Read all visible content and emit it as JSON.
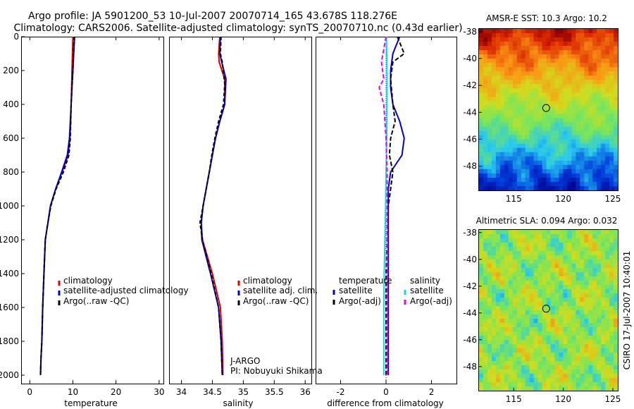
{
  "figure": {
    "title_line1": "Argo profile: JA 5901200_53 10-Jul-2007 20070714_165 43.678S 118.276E",
    "title_line2": "Climatology: CARS2006. Satellite-adjusted climatology: synTS_20070710.nc (0.43d earlier)",
    "side_stamp": "CSIRO 17-Jul-2007 10:40:01",
    "pi_line1": "J-ARGO",
    "pi_line2": "PI: Nobuyuki Shikama"
  },
  "colors": {
    "climatology": "#dd0000",
    "satellite": "#0000cc",
    "argo": "#000000",
    "sat_salinity": "#00e0e0",
    "argo_salinity_diff": "#ee00ee",
    "zero_line": "#0000ff"
  },
  "chart_data": [
    {
      "id": "temperature",
      "type": "line",
      "xlabel": "temperature",
      "ylabel": "",
      "xlim": [
        -2,
        31
      ],
      "ylim": [
        2050,
        0
      ],
      "xticks": [
        0,
        10,
        20,
        30
      ],
      "yticks": [
        0,
        200,
        400,
        600,
        800,
        1000,
        1200,
        1400,
        1600,
        1800,
        2000
      ],
      "legend": [
        "climatology",
        "satellite-adjusted climatology",
        "Argo(..raw -QC)"
      ],
      "series": [
        {
          "name": "climatology",
          "color": "#dd0000",
          "dash": "",
          "x": [
            10.0,
            9.9,
            9.8,
            9.7,
            9.6,
            9.5,
            9.3,
            8.9,
            7.5,
            6.0,
            4.8,
            4.2,
            3.6,
            3.3,
            3.0,
            2.8,
            2.6,
            2.5
          ],
          "y": [
            0,
            100,
            200,
            300,
            400,
            500,
            600,
            700,
            800,
            900,
            1000,
            1100,
            1200,
            1400,
            1600,
            1800,
            1900,
            2000
          ]
        },
        {
          "name": "satellite-adjusted climatology",
          "color": "#0000cc",
          "dash": "",
          "x": [
            10.4,
            10.2,
            10.0,
            9.8,
            9.6,
            9.4,
            9.2,
            8.7,
            7.4,
            6.0,
            4.8,
            4.2,
            3.6,
            3.3,
            3.0,
            2.8,
            2.6,
            2.5
          ],
          "y": [
            0,
            100,
            200,
            300,
            400,
            500,
            600,
            700,
            800,
            900,
            1000,
            1100,
            1200,
            1400,
            1600,
            1800,
            1900,
            2000
          ]
        },
        {
          "name": "Argo(..raw -QC)",
          "color": "#000000",
          "dash": "5,3",
          "x": [
            10.3,
            10.1,
            10.0,
            9.8,
            9.6,
            9.5,
            9.4,
            9.1,
            7.8,
            6.1,
            4.9,
            4.2,
            3.6,
            3.3,
            3.0,
            2.8,
            2.6,
            2.5
          ],
          "y": [
            0,
            100,
            200,
            300,
            400,
            500,
            600,
            700,
            800,
            900,
            1000,
            1100,
            1200,
            1400,
            1600,
            1800,
            1900,
            2000
          ]
        }
      ]
    },
    {
      "id": "salinity",
      "type": "line",
      "xlabel": "salinity",
      "ylabel": "",
      "xlim": [
        33.8,
        36.1
      ],
      "ylim": [
        2050,
        0
      ],
      "xticks": [
        34,
        34.5,
        35,
        35.5,
        36
      ],
      "yticks": [],
      "legend": [
        "climatology",
        "satellite adj. clim.",
        "Argo(..raw -QC)"
      ],
      "series": [
        {
          "name": "climatology",
          "color": "#dd0000",
          "dash": "",
          "x": [
            34.62,
            34.6,
            34.61,
            34.7,
            34.7,
            34.62,
            34.55,
            34.5,
            34.45,
            34.4,
            34.35,
            34.32,
            34.34,
            34.5,
            34.63,
            34.66,
            34.67
          ],
          "y": [
            0,
            100,
            150,
            250,
            400,
            500,
            600,
            700,
            800,
            900,
            1000,
            1100,
            1200,
            1400,
            1600,
            1800,
            2000
          ]
        },
        {
          "name": "satellite adj. clim.",
          "color": "#0000cc",
          "dash": "",
          "x": [
            34.63,
            34.62,
            34.65,
            34.72,
            34.7,
            34.62,
            34.55,
            34.5,
            34.45,
            34.4,
            34.35,
            34.32,
            34.33,
            34.47,
            34.6,
            34.64,
            34.66
          ],
          "y": [
            0,
            100,
            150,
            250,
            400,
            500,
            600,
            700,
            800,
            900,
            1000,
            1100,
            1200,
            1400,
            1600,
            1800,
            2000
          ]
        },
        {
          "name": "Argo(..raw -QC)",
          "color": "#000000",
          "dash": "5,3",
          "x": [
            34.64,
            34.63,
            34.66,
            34.7,
            34.68,
            34.6,
            34.54,
            34.49,
            34.45,
            34.4,
            34.35,
            34.3,
            34.34,
            34.48,
            34.6,
            34.64,
            34.66
          ],
          "y": [
            0,
            100,
            150,
            280,
            400,
            500,
            600,
            700,
            800,
            900,
            1000,
            1100,
            1200,
            1400,
            1600,
            1800,
            2000
          ]
        }
      ]
    },
    {
      "id": "difference",
      "type": "line",
      "xlabel": "difference from climatology",
      "ylabel": "",
      "xlim": [
        -3.1,
        3.1
      ],
      "ylim": [
        2050,
        0
      ],
      "xticks": [
        -2,
        0,
        2
      ],
      "yticks": [],
      "legend_temperature_title": "temperature",
      "legend_salinity_title": "salinity",
      "legend_temperature": [
        "satellite",
        "Argo(-adj)"
      ],
      "legend_salinity": [
        "satellite",
        "Argo(-adj)"
      ],
      "series": [
        {
          "name": "temperature satellite",
          "color": "#0000cc",
          "dash": "",
          "x": [
            0.6,
            0.3,
            0.2,
            0.2,
            0.3,
            0.6,
            0.8,
            0.7,
            0.2,
            0.1,
            0.1,
            0.1,
            0.1,
            0.1,
            0.1,
            0.1
          ],
          "y": [
            0,
            100,
            200,
            300,
            400,
            500,
            600,
            700,
            800,
            900,
            1000,
            1200,
            1400,
            1600,
            1800,
            2000
          ]
        },
        {
          "name": "temperature Argo(-adj)",
          "color": "#000000",
          "dash": "6,3",
          "x": [
            0.5,
            0.8,
            0.3,
            0.2,
            0.3,
            0.4,
            0.2,
            0.15,
            0.3,
            0.2,
            0.1,
            0.05,
            0.0,
            0.0,
            0.0
          ],
          "y": [
            0,
            100,
            150,
            250,
            400,
            500,
            600,
            700,
            800,
            900,
            1000,
            1200,
            1400,
            1600,
            2000
          ]
        },
        {
          "name": "salinity satellite",
          "color": "#00e0e0",
          "dash": "",
          "x": [
            0.02,
            0.04,
            0.04,
            0.03,
            0.0,
            -0.02,
            -0.05,
            -0.08,
            -0.1,
            -0.1,
            -0.1
          ],
          "y": [
            0,
            200,
            400,
            600,
            800,
            1000,
            1200,
            1400,
            1600,
            1800,
            2000
          ]
        },
        {
          "name": "salinity Argo(-adj)",
          "color": "#ee00ee",
          "dash": "6,3",
          "x": [
            0.0,
            -0.2,
            -0.1,
            -0.3,
            -0.1,
            0.0,
            0.05,
            0.05,
            0.05,
            0.05
          ],
          "y": [
            0,
            150,
            250,
            300,
            400,
            600,
            800,
            1200,
            1600,
            2000
          ]
        }
      ]
    },
    {
      "id": "amsr_sst_map",
      "type": "heatmap",
      "title": "AMSR-E SST: 10.3  Argo: 10.2",
      "xlim": [
        111.5,
        125.5
      ],
      "ylim": [
        -49.8,
        -37.8
      ],
      "xticks": [
        115,
        120,
        125
      ],
      "yticks": [
        -38,
        -40,
        -42,
        -44,
        -46,
        -48
      ],
      "marker": {
        "lon": 118.276,
        "lat": -43.678
      }
    },
    {
      "id": "altimetric_sla_map",
      "type": "heatmap",
      "title": "Altimetric SLA: 0.094  Argo: 0.032",
      "xlim": [
        111.5,
        125.5
      ],
      "ylim": [
        -49.8,
        -37.8
      ],
      "xticks": [
        115,
        120,
        125
      ],
      "yticks": [
        -38,
        -40,
        -42,
        -44,
        -46,
        -48
      ],
      "marker": {
        "lon": 118.276,
        "lat": -43.678
      }
    }
  ]
}
